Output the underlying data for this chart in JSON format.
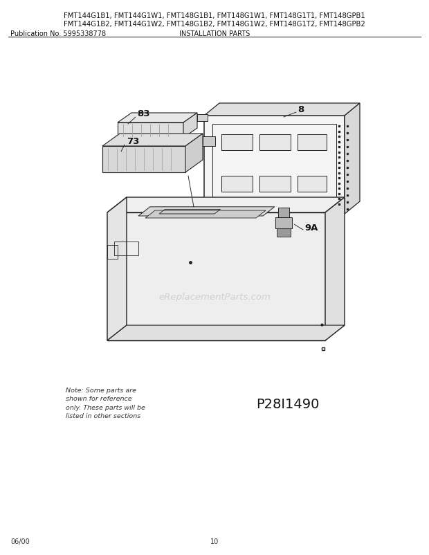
{
  "bg_color": "#ffffff",
  "title_line1": "FMT144G1B1, FMT144G1W1, FMT148G1B1, FMT148G1W1, FMT148G1T1, FMT148GPB1",
  "title_line2": "FMT144G1B2, FMT144G1W2, FMT148G1B2, FMT148G1W2, FMT148G1T2, FMT148GPB2",
  "pub_no": "Publication No. 5995338778",
  "section_title": "INSTALLATION PARTS",
  "footer_left": "06/00",
  "footer_center": "10",
  "watermark": "eReplacementParts.com",
  "diagram_id": "P28I1490",
  "note_text": "Note: Some parts are\nshown for reference\nonly. These parts will be\nlisted in other sections",
  "lc": "#222222",
  "lw": 0.85
}
